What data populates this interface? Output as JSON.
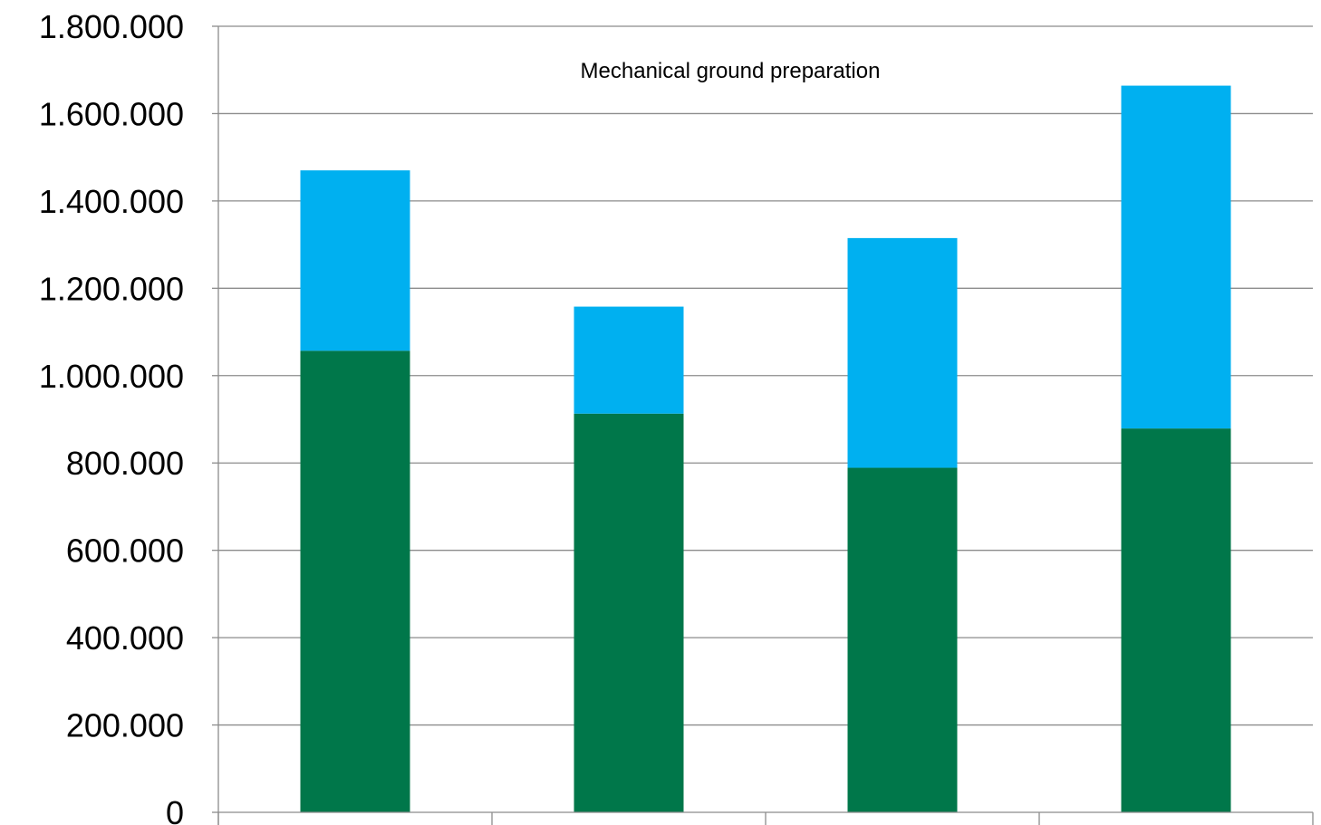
{
  "chart_data": {
    "type": "bar",
    "stacked": true,
    "categories": [
      "",
      "",
      "",
      ""
    ],
    "series": [
      {
        "color": "#00774A",
        "values": [
          1057000,
          913000,
          789000,
          879000
        ]
      },
      {
        "color": "#00B0F0",
        "values": [
          413000,
          245000,
          526000,
          785000
        ]
      }
    ],
    "title": "",
    "annotations": [
      {
        "text": "Mechanical ground preparation"
      }
    ],
    "xlabel": "",
    "ylabel": "",
    "ylim": [
      0,
      1800000
    ],
    "yticks": [
      0,
      200000,
      400000,
      600000,
      800000,
      1000000,
      1200000,
      1400000,
      1600000,
      1800000
    ],
    "ytick_labels": [
      "0",
      "200.000",
      "400.000",
      "600.000",
      "800.000",
      "1.000.000",
      "1.200.000",
      "1.400.000",
      "1.600.000",
      "1.800.000"
    ],
    "grid": true,
    "legend": "none"
  }
}
